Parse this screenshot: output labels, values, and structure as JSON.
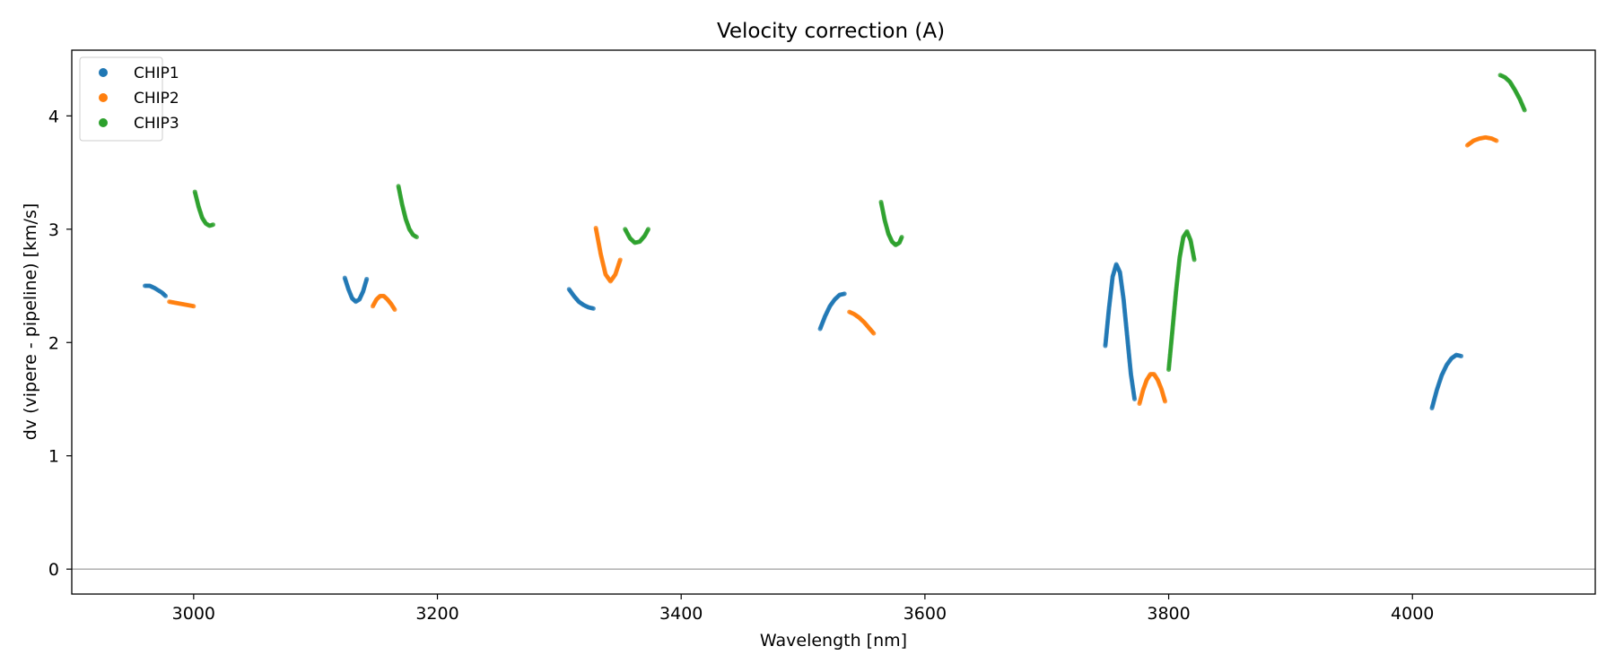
{
  "chart_data": {
    "type": "scatter",
    "title": "Velocity correction (A)",
    "xlabel": "Wavelength [nm]",
    "ylabel": "dv (vipere - pipeline) [km/s]",
    "xlim": [
      2900,
      4150
    ],
    "ylim": [
      -0.22,
      4.58
    ],
    "xticks": [
      3000,
      3200,
      3400,
      3600,
      3800,
      4000
    ],
    "yticks": [
      0,
      1,
      2,
      3,
      4
    ],
    "grid": false,
    "zero_line": true,
    "legend": {
      "position": "top-left",
      "entries": [
        "CHIP1",
        "CHIP2",
        "CHIP3"
      ]
    },
    "series": [
      {
        "name": "CHIP1",
        "color": "#1f77b4",
        "segments": [
          {
            "x": [
              2960,
              2964,
              2968,
              2971,
              2974,
              2977
            ],
            "y": [
              2.5,
              2.5,
              2.48,
              2.46,
              2.44,
              2.41
            ]
          },
          {
            "x": [
              3124,
              3127,
              3130,
              3133,
              3136,
              3139,
              3142
            ],
            "y": [
              2.57,
              2.47,
              2.39,
              2.36,
              2.38,
              2.45,
              2.56
            ]
          },
          {
            "x": [
              3308,
              3312,
              3316,
              3320,
              3324,
              3328
            ],
            "y": [
              2.47,
              2.41,
              2.36,
              2.33,
              2.31,
              2.3
            ]
          },
          {
            "x": [
              3514,
              3518,
              3522,
              3526,
              3530,
              3534
            ],
            "y": [
              2.12,
              2.23,
              2.32,
              2.38,
              2.42,
              2.43
            ]
          },
          {
            "x": [
              3748,
              3751,
              3754,
              3757,
              3760,
              3763,
              3766,
              3769,
              3772
            ],
            "y": [
              1.97,
              2.3,
              2.58,
              2.69,
              2.62,
              2.38,
              2.05,
              1.72,
              1.5
            ]
          },
          {
            "x": [
              4016,
              4020,
              4024,
              4028,
              4032,
              4036,
              4040
            ],
            "y": [
              1.42,
              1.58,
              1.71,
              1.8,
              1.86,
              1.89,
              1.88
            ]
          }
        ]
      },
      {
        "name": "CHIP2",
        "color": "#ff7f0e",
        "segments": [
          {
            "x": [
              2980,
              2985,
              2990,
              2995,
              3000
            ],
            "y": [
              2.36,
              2.35,
              2.34,
              2.33,
              2.32
            ]
          },
          {
            "x": [
              3147,
              3150,
              3153,
              3156,
              3159,
              3162,
              3165
            ],
            "y": [
              2.32,
              2.38,
              2.41,
              2.41,
              2.38,
              2.34,
              2.29
            ]
          },
          {
            "x": [
              3330,
              3334,
              3338,
              3342,
              3346,
              3350
            ],
            "y": [
              3.01,
              2.78,
              2.6,
              2.54,
              2.6,
              2.73
            ]
          },
          {
            "x": [
              3538,
              3542,
              3546,
              3550,
              3554,
              3558
            ],
            "y": [
              2.27,
              2.25,
              2.22,
              2.18,
              2.13,
              2.08
            ]
          },
          {
            "x": [
              3776,
              3779,
              3782,
              3785,
              3788,
              3791,
              3794,
              3797
            ],
            "y": [
              1.46,
              1.58,
              1.67,
              1.72,
              1.72,
              1.67,
              1.59,
              1.48
            ]
          },
          {
            "x": [
              4045,
              4050,
              4055,
              4060,
              4065,
              4069
            ],
            "y": [
              3.74,
              3.78,
              3.8,
              3.81,
              3.8,
              3.78
            ]
          }
        ]
      },
      {
        "name": "CHIP3",
        "color": "#2ca02c",
        "segments": [
          {
            "x": [
              3001,
              3004,
              3007,
              3010,
              3013,
              3016
            ],
            "y": [
              3.33,
              3.2,
              3.1,
              3.05,
              3.03,
              3.04
            ]
          },
          {
            "x": [
              3168,
              3171,
              3174,
              3177,
              3180,
              3183
            ],
            "y": [
              3.38,
              3.22,
              3.09,
              3.0,
              2.95,
              2.93
            ]
          },
          {
            "x": [
              3354,
              3358,
              3362,
              3366,
              3370,
              3373
            ],
            "y": [
              3.0,
              2.92,
              2.88,
              2.89,
              2.94,
              3.0
            ]
          },
          {
            "x": [
              3564,
              3567,
              3570,
              3573,
              3576,
              3579,
              3581
            ],
            "y": [
              3.24,
              3.08,
              2.96,
              2.89,
              2.86,
              2.88,
              2.93
            ]
          },
          {
            "x": [
              3800,
              3803,
              3806,
              3809,
              3812,
              3815,
              3818,
              3821
            ],
            "y": [
              1.76,
              2.1,
              2.45,
              2.75,
              2.93,
              2.98,
              2.9,
              2.73
            ]
          },
          {
            "x": [
              4072,
              4076,
              4080,
              4084,
              4088,
              4092
            ],
            "y": [
              4.36,
              4.34,
              4.3,
              4.23,
              4.15,
              4.05
            ]
          }
        ]
      }
    ]
  }
}
